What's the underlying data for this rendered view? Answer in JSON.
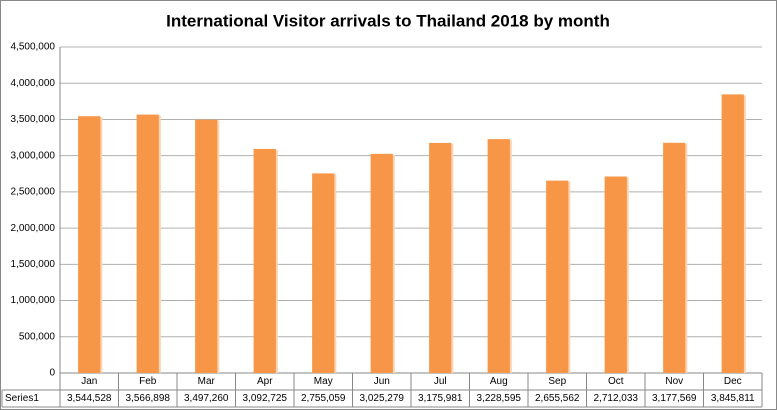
{
  "chart_data": {
    "type": "bar",
    "title": "International Visitor arrivals to Thailand 2018 by month",
    "categories": [
      "Jan",
      "Feb",
      "Mar",
      "Apr",
      "May",
      "Jun",
      "Jul",
      "Aug",
      "Sep",
      "Oct",
      "Nov",
      "Dec"
    ],
    "series": [
      {
        "name": "Series1",
        "color": "#f79646",
        "values": [
          3544528,
          3566898,
          3497260,
          3092725,
          2755059,
          3025279,
          3175981,
          3228595,
          2655562,
          2712033,
          3177569,
          3845811
        ],
        "value_labels": [
          "3,544,528",
          "3,566,898",
          "3,497,260",
          "3,092,725",
          "2,755,059",
          "3,025,279",
          "3,175,981",
          "3,228,595",
          "2,655,562",
          "2,712,033",
          "3,177,569",
          "3,845,811"
        ]
      }
    ],
    "ylim": [
      0,
      4500000
    ],
    "yticks": [
      0,
      {
        "value": 500000,
        "label": "500,000"
      },
      {
        "value": 1000000,
        "label": "1,000,000"
      },
      {
        "value": 1500000,
        "label": "1,500,000"
      },
      {
        "value": 2000000,
        "label": "2,000,000"
      },
      {
        "value": 2500000,
        "label": "2,500,000"
      },
      {
        "value": 3000000,
        "label": "3,000,000"
      },
      {
        "value": 3500000,
        "label": "3,500,000"
      },
      {
        "value": 4000000,
        "label": "4,000,000"
      },
      {
        "value": 4500000,
        "label": "4,500,000"
      }
    ],
    "grid": true
  }
}
